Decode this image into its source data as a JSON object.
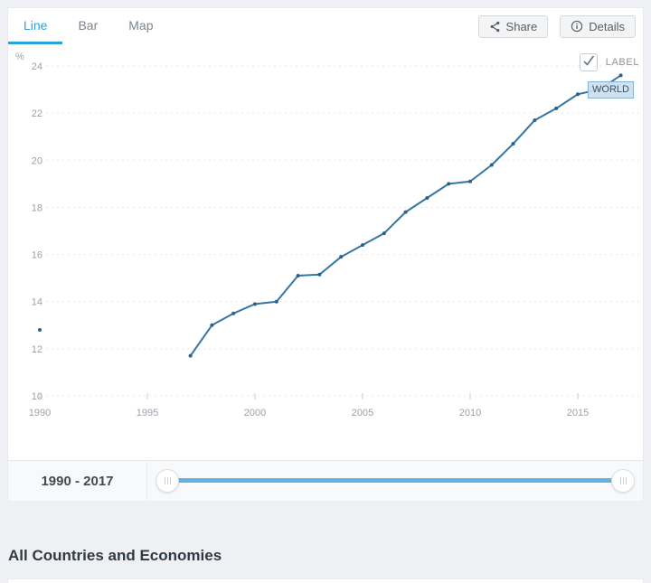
{
  "tabs": {
    "items": [
      {
        "id": "line",
        "label": "Line",
        "active": true
      },
      {
        "id": "bar",
        "label": "Bar",
        "active": false
      },
      {
        "id": "map",
        "label": "Map",
        "active": false
      }
    ]
  },
  "toolbar": {
    "share_label": "Share",
    "details_label": "Details"
  },
  "chart_controls": {
    "label_toggle_text": "LABEL",
    "label_toggle_checked": true,
    "series_badge": "WORLD"
  },
  "range_slider": {
    "label": "1990 - 2017"
  },
  "section_heading": "All Countries and Economies",
  "colors": {
    "accent_tab_blue": "#2aa2dc",
    "line": "#3576a2",
    "point": "#2b628c",
    "grid": "#e3e5e8",
    "axis_text": "#9aa1a9",
    "slider_track": "#64b1e2"
  },
  "chart_data": {
    "type": "line",
    "title": "",
    "xlabel": "",
    "ylabel": "%",
    "unit": "%",
    "x_start": 1990,
    "x": [
      1990,
      1991,
      1992,
      1993,
      1994,
      1995,
      1996,
      1997,
      1998,
      1999,
      2000,
      2001,
      2002,
      2003,
      2004,
      2005,
      2006,
      2007,
      2008,
      2009,
      2010,
      2011,
      2012,
      2013,
      2014,
      2015,
      2016,
      2017
    ],
    "series": [
      {
        "name": "WORLD",
        "values": [
          12.8,
          null,
          null,
          null,
          null,
          null,
          null,
          11.7,
          13.0,
          13.5,
          13.9,
          14.0,
          15.1,
          15.15,
          15.9,
          16.4,
          16.9,
          17.8,
          18.4,
          19.0,
          19.1,
          19.8,
          20.7,
          21.7,
          22.2,
          22.8,
          23.0,
          23.6
        ]
      }
    ],
    "xticks": [
      1990,
      1995,
      2000,
      2005,
      2010,
      2015
    ],
    "yticks": [
      10,
      12,
      14,
      16,
      18,
      20,
      22,
      24
    ],
    "ylim": [
      10,
      24
    ],
    "xlim": [
      1990,
      2018
    ],
    "grid": true,
    "grid_style": "dashed",
    "legend_position": "end-of-line-badge"
  }
}
